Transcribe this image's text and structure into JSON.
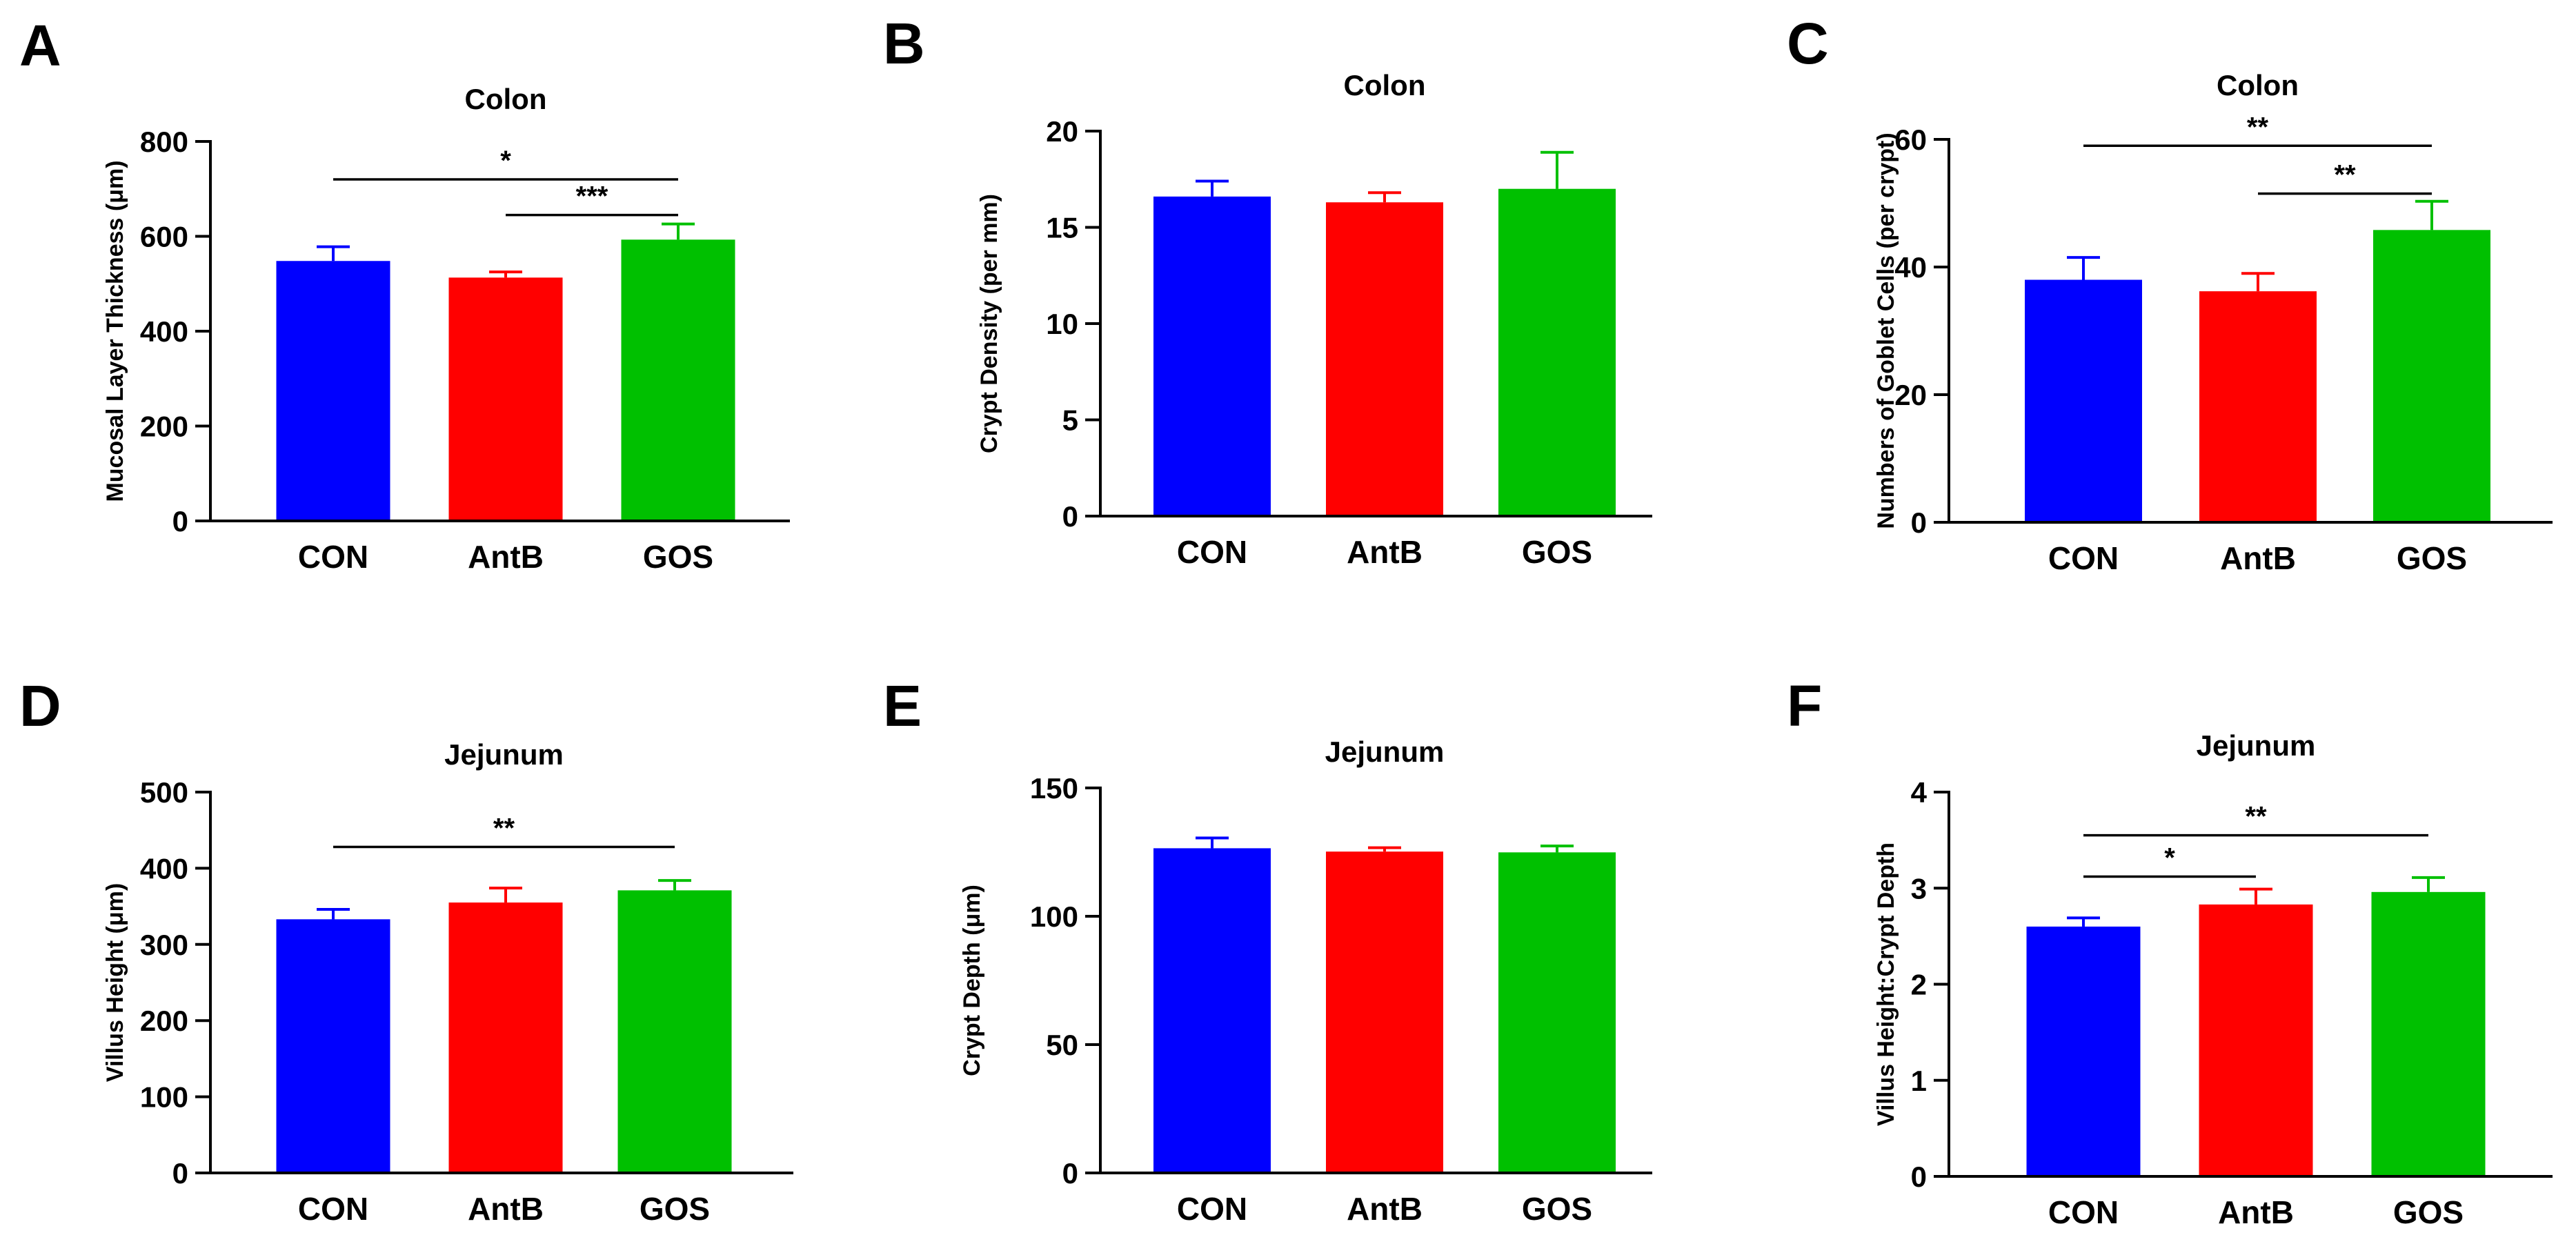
{
  "figure": {
    "panels": [
      "A",
      "B",
      "C",
      "D",
      "E",
      "F"
    ]
  },
  "chart_data": [
    {
      "type": "bar",
      "panel": "A",
      "title": "Colon",
      "ylabel": "Mucosal Layer Thickness (μm)",
      "xlabel": "",
      "ylim": [
        0,
        800
      ],
      "yticks": [
        0,
        200,
        400,
        600,
        800
      ],
      "categories": [
        "CON",
        "AntB",
        "GOS"
      ],
      "values": [
        548,
        513,
        593
      ],
      "errors": [
        30,
        12,
        33
      ],
      "colors": [
        "#0000ff",
        "#ff0000",
        "#00c000"
      ],
      "significance": [
        {
          "from": 0,
          "to": 2,
          "label": "*",
          "y": 720
        },
        {
          "from": 1,
          "to": 2,
          "label": "***",
          "y": 645
        }
      ]
    },
    {
      "type": "bar",
      "panel": "B",
      "title": "Colon",
      "ylabel": "Crypt Density (per mm)",
      "xlabel": "",
      "ylim": [
        0,
        20
      ],
      "yticks": [
        0,
        5,
        10,
        15,
        20
      ],
      "categories": [
        "CON",
        "AntB",
        "GOS"
      ],
      "values": [
        16.6,
        16.3,
        17.0
      ],
      "errors": [
        0.8,
        0.5,
        1.9
      ],
      "colors": [
        "#0000ff",
        "#ff0000",
        "#00c000"
      ],
      "significance": []
    },
    {
      "type": "bar",
      "panel": "C",
      "title": "Colon",
      "ylabel": "Numbers of Goblet Cells (per crypt)",
      "xlabel": "",
      "ylim": [
        0,
        60
      ],
      "yticks": [
        0,
        20,
        40,
        60
      ],
      "categories": [
        "CON",
        "AntB",
        "GOS"
      ],
      "values": [
        38,
        36.2,
        45.8
      ],
      "errors": [
        3.5,
        2.8,
        4.5
      ],
      "colors": [
        "#0000ff",
        "#ff0000",
        "#00c000"
      ],
      "significance": [
        {
          "from": 0,
          "to": 2,
          "label": "**",
          "y": 59
        },
        {
          "from": 1,
          "to": 2,
          "label": "**",
          "y": 51.5
        }
      ]
    },
    {
      "type": "bar",
      "panel": "D",
      "title": "Jejunum",
      "ylabel": "Villus Height (μm)",
      "xlabel": "",
      "ylim": [
        0,
        500
      ],
      "yticks": [
        0,
        100,
        200,
        300,
        400,
        500
      ],
      "categories": [
        "CON",
        "AntB",
        "GOS"
      ],
      "values": [
        333,
        355,
        371
      ],
      "errors": [
        13,
        19,
        13
      ],
      "colors": [
        "#0000ff",
        "#ff0000",
        "#00c000"
      ],
      "significance": [
        {
          "from": 0,
          "to": 2,
          "label": "**",
          "y": 428
        }
      ]
    },
    {
      "type": "bar",
      "panel": "E",
      "title": "Jejunum",
      "ylabel": "Crypt Depth (μm)",
      "xlabel": "",
      "ylim": [
        0,
        150
      ],
      "yticks": [
        0,
        50,
        100,
        150
      ],
      "categories": [
        "CON",
        "AntB",
        "GOS"
      ],
      "values": [
        126.5,
        125.2,
        124.9
      ],
      "errors": [
        4,
        1.5,
        2.5
      ],
      "colors": [
        "#0000ff",
        "#ff0000",
        "#00c000"
      ],
      "significance": []
    },
    {
      "type": "bar",
      "panel": "F",
      "title": "Jejunum",
      "ylabel": "Villus Height:Crypt Depth",
      "xlabel": "",
      "ylim": [
        0,
        4
      ],
      "yticks": [
        0,
        1,
        2,
        3,
        4
      ],
      "categories": [
        "CON",
        "AntB",
        "GOS"
      ],
      "values": [
        2.6,
        2.83,
        2.96
      ],
      "errors": [
        0.09,
        0.16,
        0.15
      ],
      "colors": [
        "#0000ff",
        "#ff0000",
        "#00c000"
      ],
      "significance": [
        {
          "from": 0,
          "to": 2,
          "label": "**",
          "y": 3.55
        },
        {
          "from": 0,
          "to": 1,
          "label": "*",
          "y": 3.12
        }
      ]
    }
  ]
}
